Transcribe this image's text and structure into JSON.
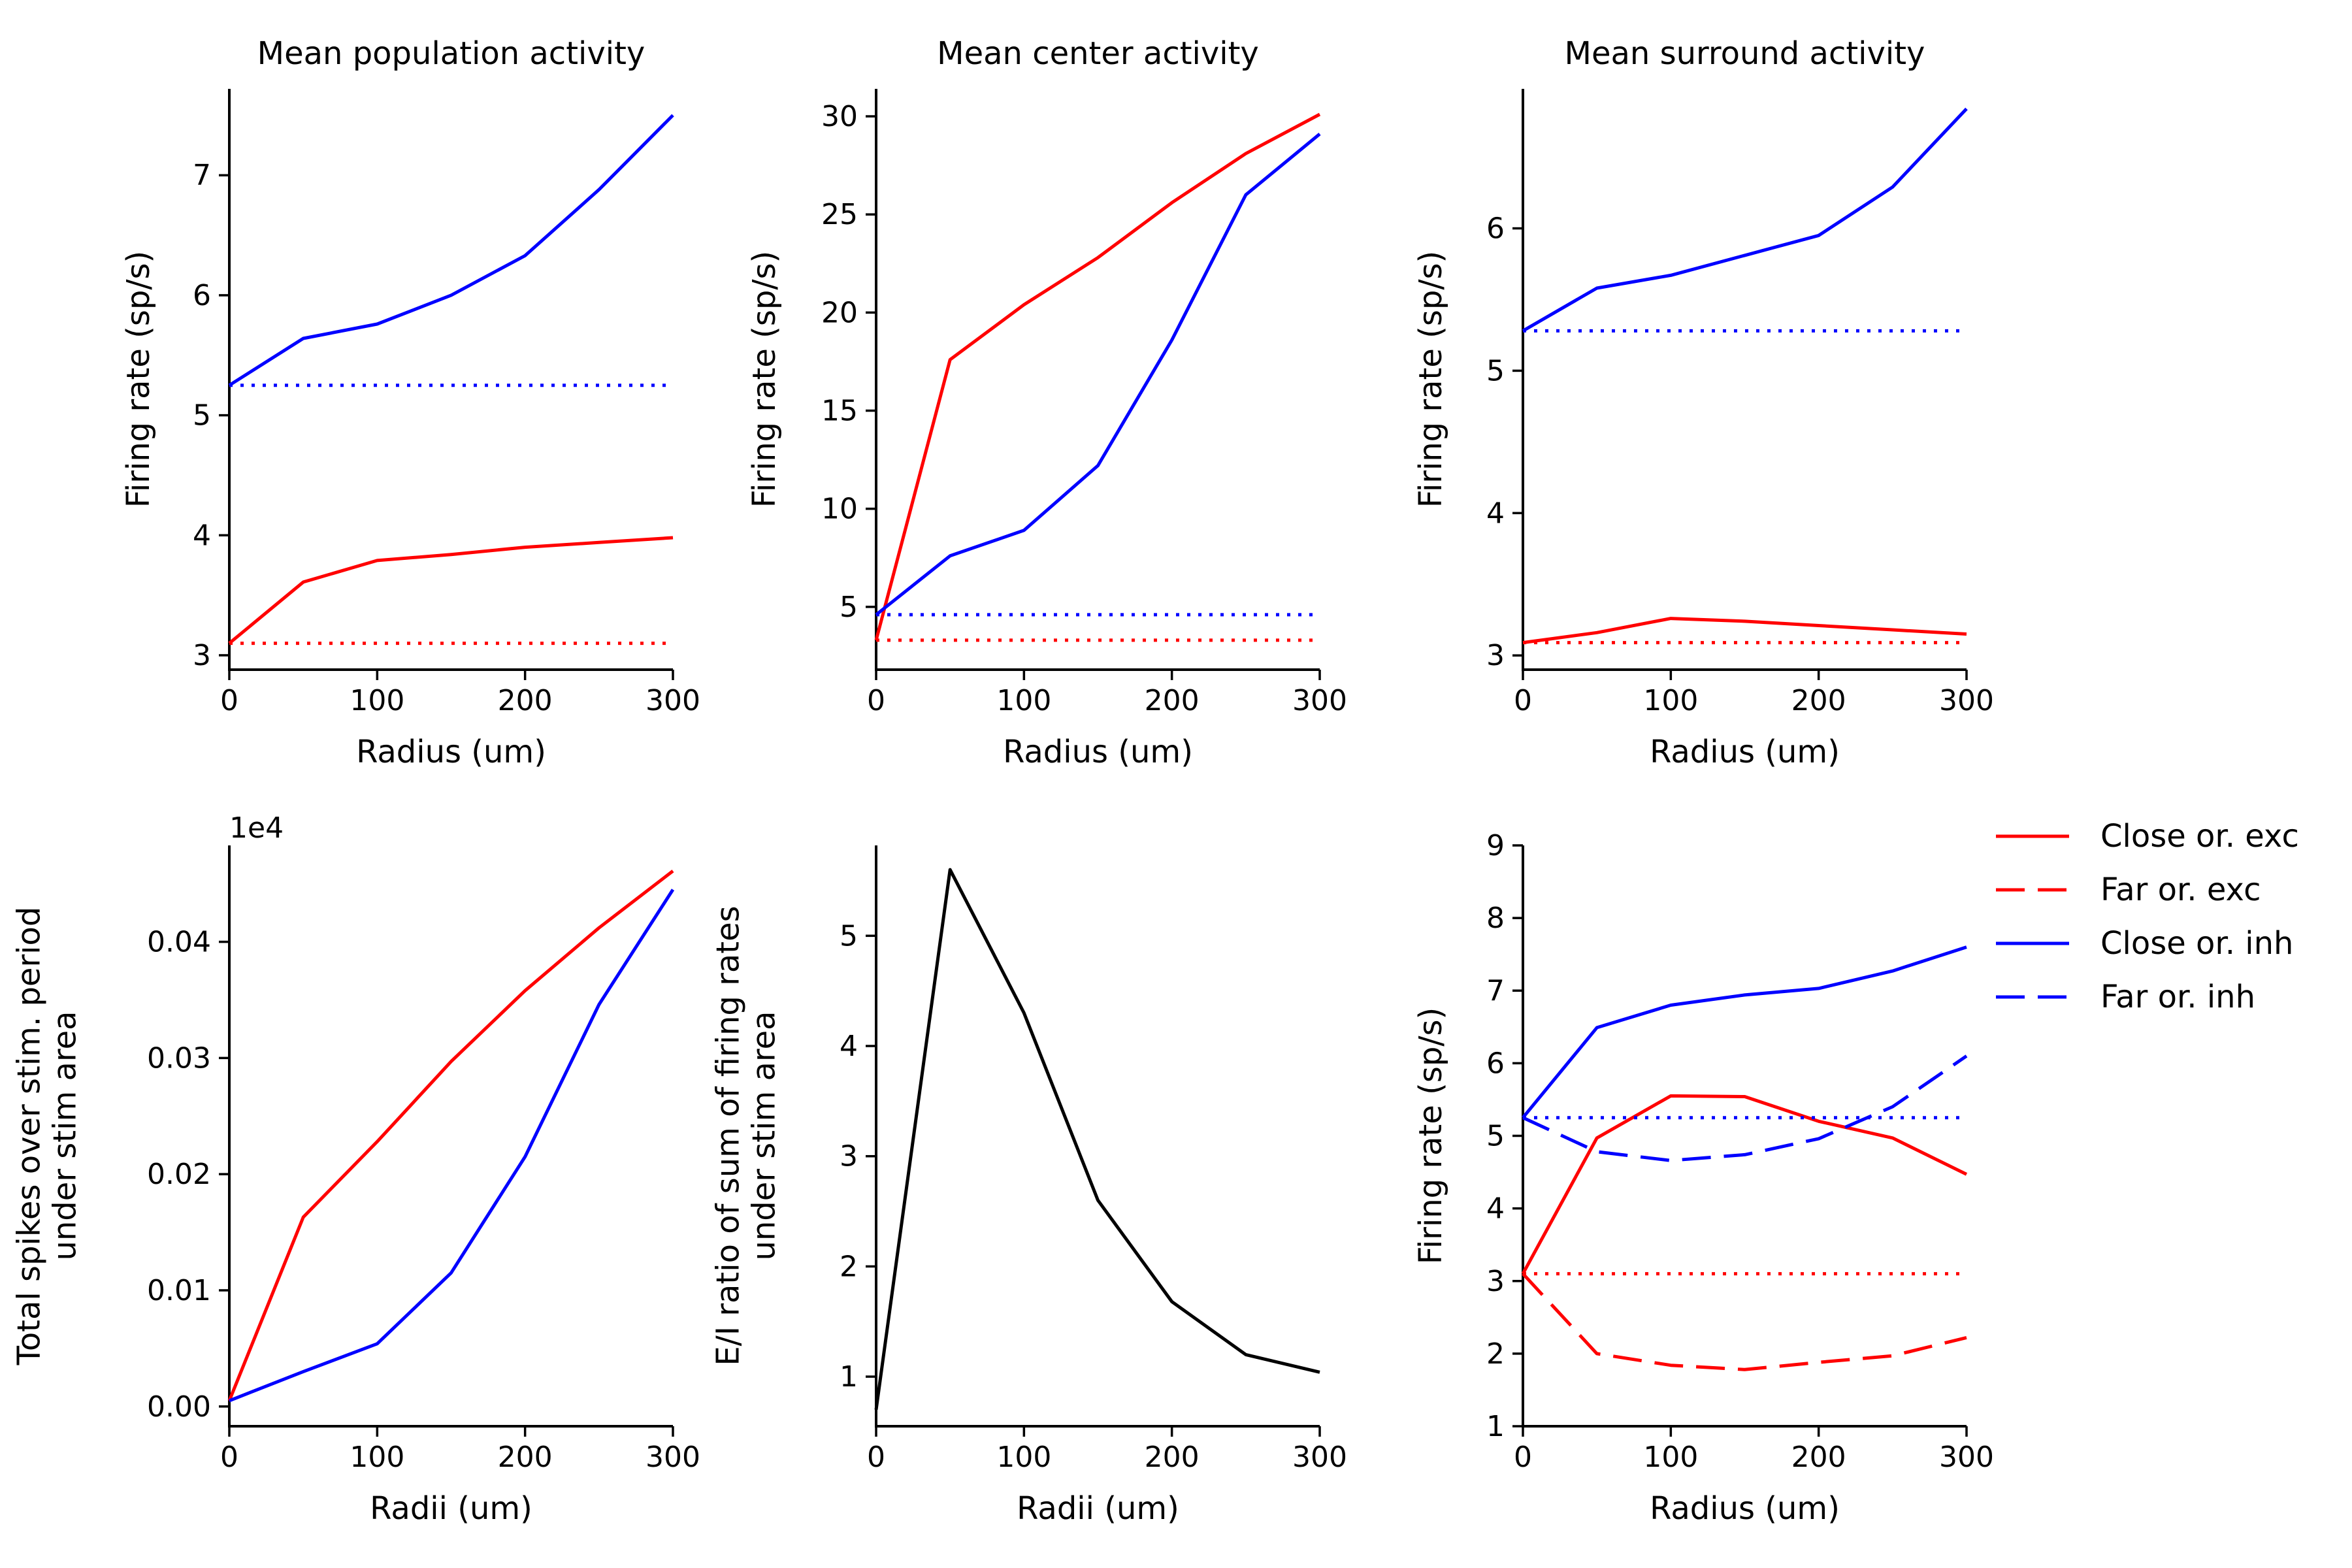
{
  "figure": {
    "colors": {
      "exc": "#ff0000",
      "inh": "#0000ff",
      "ratio": "#000000",
      "axis": "#000000"
    }
  },
  "chart_data": [
    {
      "id": "p1",
      "type": "line",
      "title": "Mean population activity",
      "xlabel": "Radius (um)",
      "ylabel": [
        "Firing rate (sp/s)"
      ],
      "xlim": [
        0,
        300
      ],
      "ylim": [
        2.88,
        7.72
      ],
      "xticks": [
        0,
        100,
        200,
        300
      ],
      "yticks": [
        3,
        4,
        5,
        6,
        7
      ],
      "x": [
        0,
        50,
        100,
        150,
        200,
        250,
        300
      ],
      "series": [
        {
          "color": "#0000ff",
          "style": "solid",
          "values": [
            5.25,
            5.64,
            5.76,
            6.0,
            6.33,
            6.88,
            7.5
          ]
        },
        {
          "color": "#ff0000",
          "style": "solid",
          "values": [
            3.1,
            3.61,
            3.79,
            3.84,
            3.9,
            3.94,
            3.98
          ]
        },
        {
          "color": "#0000ff",
          "style": "dotted",
          "values": [
            5.25,
            5.25,
            5.25,
            5.25,
            5.25,
            5.25,
            5.25
          ]
        },
        {
          "color": "#ff0000",
          "style": "dotted",
          "values": [
            3.1,
            3.1,
            3.1,
            3.1,
            3.1,
            3.1,
            3.1
          ]
        }
      ]
    },
    {
      "id": "p2",
      "type": "line",
      "title": "Mean center activity",
      "xlabel": "Radius (um)",
      "ylabel": [
        "Firing rate (sp/s)"
      ],
      "xlim": [
        0,
        300
      ],
      "ylim": [
        1.8,
        31.4
      ],
      "xticks": [
        0,
        100,
        200,
        300
      ],
      "yticks": [
        5,
        10,
        15,
        20,
        25,
        30
      ],
      "x": [
        0,
        50,
        100,
        150,
        200,
        250,
        300
      ],
      "series": [
        {
          "color": "#ff0000",
          "style": "solid",
          "values": [
            3.3,
            17.6,
            20.4,
            22.8,
            25.6,
            28.1,
            30.1
          ]
        },
        {
          "color": "#0000ff",
          "style": "solid",
          "values": [
            4.6,
            7.6,
            8.9,
            12.2,
            18.6,
            26.0,
            29.1
          ]
        },
        {
          "color": "#0000ff",
          "style": "dotted",
          "values": [
            4.6,
            4.6,
            4.6,
            4.6,
            4.6,
            4.6,
            4.6
          ]
        },
        {
          "color": "#ff0000",
          "style": "dotted",
          "values": [
            3.3,
            3.3,
            3.3,
            3.3,
            3.3,
            3.3,
            3.3
          ]
        }
      ]
    },
    {
      "id": "p3",
      "type": "line",
      "title": "Mean surround activity",
      "xlabel": "Radius (um)",
      "ylabel": [
        "Firing rate (sp/s)"
      ],
      "xlim": [
        0,
        300
      ],
      "ylim": [
        2.9,
        6.98
      ],
      "xticks": [
        0,
        100,
        200,
        300
      ],
      "yticks": [
        3,
        4,
        5,
        6
      ],
      "x": [
        0,
        50,
        100,
        150,
        200,
        250,
        300
      ],
      "series": [
        {
          "color": "#0000ff",
          "style": "solid",
          "values": [
            5.28,
            5.58,
            5.67,
            5.81,
            5.95,
            6.29,
            6.84
          ]
        },
        {
          "color": "#ff0000",
          "style": "solid",
          "values": [
            3.09,
            3.16,
            3.26,
            3.24,
            3.21,
            3.18,
            3.15
          ]
        },
        {
          "color": "#0000ff",
          "style": "dotted",
          "values": [
            5.28,
            5.28,
            5.28,
            5.28,
            5.28,
            5.28,
            5.28
          ]
        },
        {
          "color": "#ff0000",
          "style": "dotted",
          "values": [
            3.09,
            3.09,
            3.09,
            3.09,
            3.09,
            3.09,
            3.09
          ]
        }
      ]
    },
    {
      "id": "p4",
      "type": "line",
      "title": "",
      "offset_text": "1e4",
      "xlabel": "Radii (um)",
      "ylabel": [
        "Total spikes over stim. period",
        "under stim area"
      ],
      "xlim": [
        0,
        300
      ],
      "ylim": [
        -0.0017,
        0.0483
      ],
      "xticks": [
        0,
        100,
        200,
        300
      ],
      "yticks": [
        0.0,
        0.01,
        0.02,
        0.03,
        0.04
      ],
      "yticklabels": [
        "0.00",
        "0.01",
        "0.02",
        "0.03",
        "0.04"
      ],
      "x": [
        0,
        50,
        100,
        150,
        200,
        250,
        300
      ],
      "series": [
        {
          "color": "#ff0000",
          "style": "solid",
          "values": [
            0.0005,
            0.0163,
            0.0228,
            0.0297,
            0.0358,
            0.0412,
            0.0461
          ]
        },
        {
          "color": "#0000ff",
          "style": "solid",
          "values": [
            0.0005,
            0.003,
            0.0054,
            0.0115,
            0.0215,
            0.0346,
            0.0445
          ]
        }
      ]
    },
    {
      "id": "p5",
      "type": "line",
      "title": "",
      "xlabel": "Radii (um)",
      "ylabel": [
        "E/I ratio of sum of firing rates",
        "under stim area"
      ],
      "xlim": [
        0,
        300
      ],
      "ylim": [
        0.55,
        5.82
      ],
      "xticks": [
        0,
        100,
        200,
        300
      ],
      "yticks": [
        1,
        2,
        3,
        4,
        5
      ],
      "x": [
        0,
        50,
        100,
        150,
        200,
        250,
        300
      ],
      "series": [
        {
          "color": "#000000",
          "style": "solid",
          "values": [
            0.7,
            5.6,
            4.3,
            2.6,
            1.68,
            1.2,
            1.04
          ]
        }
      ]
    },
    {
      "id": "p6",
      "type": "line",
      "title": "",
      "xlabel": "Radius (um)",
      "ylabel": [
        "Firing rate (sp/s)"
      ],
      "xlim": [
        0,
        300
      ],
      "ylim": [
        1,
        9
      ],
      "xticks": [
        0,
        100,
        200,
        300
      ],
      "yticks": [
        1,
        2,
        3,
        4,
        5,
        6,
        7,
        8,
        9
      ],
      "x": [
        0,
        50,
        100,
        150,
        200,
        250,
        300
      ],
      "series": [
        {
          "name": "Close or. exc",
          "color": "#ff0000",
          "style": "solid",
          "values": [
            3.1,
            4.97,
            5.55,
            5.54,
            5.2,
            4.97,
            4.47
          ]
        },
        {
          "name": "Far or. exc",
          "color": "#ff0000",
          "style": "dashed",
          "values": [
            3.1,
            2.0,
            1.84,
            1.78,
            1.88,
            1.97,
            2.22
          ]
        },
        {
          "name": "Close or. inh",
          "color": "#0000ff",
          "style": "solid",
          "values": [
            5.25,
            6.49,
            6.8,
            6.94,
            7.03,
            7.27,
            7.6
          ]
        },
        {
          "name": "Far or. inh",
          "color": "#0000ff",
          "style": "dashed",
          "values": [
            5.25,
            4.78,
            4.66,
            4.74,
            4.96,
            5.4,
            6.1
          ]
        },
        {
          "color": "#0000ff",
          "style": "dotted",
          "values": [
            5.25,
            5.25,
            5.25,
            5.25,
            5.25,
            5.25,
            5.25
          ]
        },
        {
          "color": "#ff0000",
          "style": "dotted",
          "values": [
            3.1,
            3.1,
            3.1,
            3.1,
            3.1,
            3.1,
            3.1
          ]
        }
      ],
      "legend": {
        "placement": "outside-right-top"
      }
    }
  ]
}
